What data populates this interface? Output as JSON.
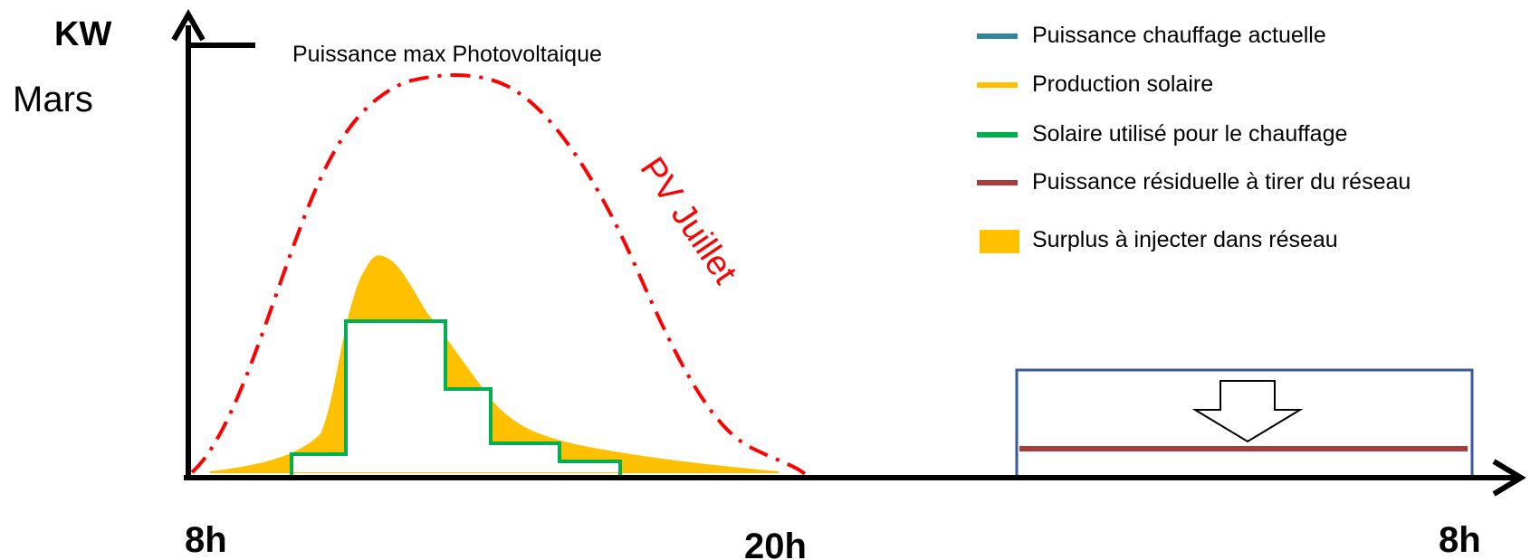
{
  "axes": {
    "y_label": "KW",
    "period": "Mars",
    "x_ticks": [
      "8h",
      "20h",
      "8h"
    ]
  },
  "annotations": {
    "pv_max": "Puissance max Photovoltaique",
    "pv_july": "PV Juillet"
  },
  "legend": [
    {
      "label": "Puissance chauffage actuelle",
      "color": "#31849b",
      "kind": "line"
    },
    {
      "label": "Production solaire",
      "color": "#ffc000",
      "kind": "line"
    },
    {
      "label": "Solaire utilisé pour le chauffage",
      "color": "#00b050",
      "kind": "line"
    },
    {
      "label": "Puissance résiduelle à tirer du réseau",
      "color": "#a83c3c",
      "kind": "line"
    },
    {
      "label": "Surplus à injecter dans réseau",
      "color": "#ffc000",
      "kind": "area"
    }
  ],
  "colors": {
    "axis": "#000000",
    "pv_curve": "#ff0000",
    "solar_fill": "#ffc000",
    "heating_used": "#00b050",
    "night_box": "#3a5a9a",
    "grid_residual": "#a83c3c"
  }
}
